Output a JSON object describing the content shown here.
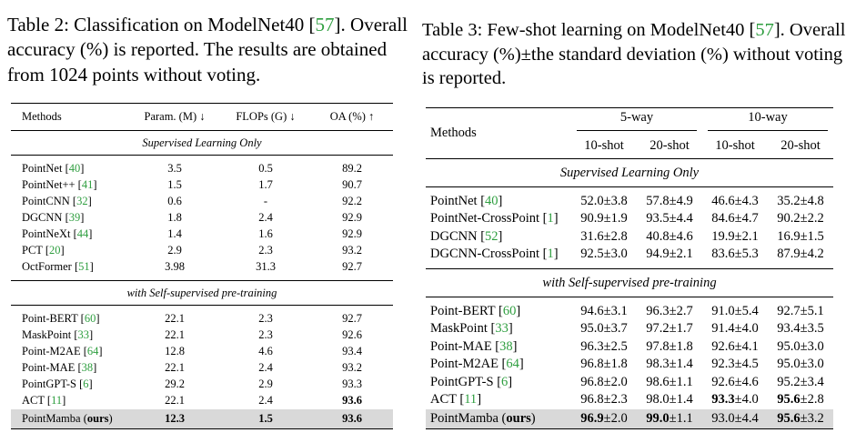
{
  "table2": {
    "caption_prefix": "Table 2:  Classification on ModelNet40 [",
    "caption_cite": "57",
    "caption_suffix": "]. Overall accuracy (%) is reported.  The results are obtained from 1024 points without voting.",
    "headers": [
      "Methods",
      "Param. (M) ↓",
      "FLOPs (G) ↓",
      "OA (%) ↑"
    ],
    "section1": "Supervised Learning Only",
    "section2": "with Self-supervised pre-training",
    "rows1": [
      {
        "name": "PointNet",
        "cite": "40",
        "param": "3.5",
        "flops": "0.5",
        "oa": "89.2"
      },
      {
        "name": "PointNet++",
        "cite": "41",
        "param": "1.5",
        "flops": "1.7",
        "oa": "90.7"
      },
      {
        "name": "PointCNN",
        "cite": "32",
        "param": "0.6",
        "flops": "-",
        "oa": "92.2"
      },
      {
        "name": "DGCNN",
        "cite": "39",
        "param": "1.8",
        "flops": "2.4",
        "oa": "92.9"
      },
      {
        "name": "PointNeXt",
        "cite": "44",
        "param": "1.4",
        "flops": "1.6",
        "oa": "92.9"
      },
      {
        "name": "PCT",
        "cite": "20",
        "param": "2.9",
        "flops": "2.3",
        "oa": "93.2"
      },
      {
        "name": "OctFormer",
        "cite": "51",
        "param": "3.98",
        "flops": "31.3",
        "oa": "92.7"
      }
    ],
    "rows2": [
      {
        "name": "Point-BERT",
        "cite": "60",
        "param": "22.1",
        "flops": "2.3",
        "oa": "92.7"
      },
      {
        "name": "MaskPoint",
        "cite": "33",
        "param": "22.1",
        "flops": "2.3",
        "oa": "92.6"
      },
      {
        "name": "Point-M2AE",
        "cite": "64",
        "param": "12.8",
        "flops": "4.6",
        "oa": "93.4"
      },
      {
        "name": "Point-MAE",
        "cite": "38",
        "param": "22.1",
        "flops": "2.4",
        "oa": "93.2"
      },
      {
        "name": "PointGPT-S",
        "cite": "6",
        "param": "29.2",
        "flops": "2.9",
        "oa": "93.3"
      },
      {
        "name": "ACT",
        "cite": "11",
        "param": "22.1",
        "flops": "2.4",
        "oa": "93.6"
      }
    ],
    "ours": {
      "name": "PointMamba",
      "tag": "ours",
      "param": "12.3",
      "flops": "1.5",
      "oa": "93.6"
    }
  },
  "table3": {
    "caption_prefix": "Table 3: Few-shot learning on ModelNet40 [",
    "caption_cite": "57",
    "caption_suffix": "]. Overall accuracy (%)±the standard deviation (%) without voting is reported.",
    "methods_header": "Methods",
    "way5": "5-way",
    "way10": "10-way",
    "shot10": "10-shot",
    "shot20": "20-shot",
    "section1": "Supervised Learning Only",
    "section2": "with Self-supervised pre-training",
    "rows1": [
      {
        "name": "PointNet",
        "cite": "40",
        "v": [
          "52.0±3.8",
          "57.8±4.9",
          "46.6±4.3",
          "35.2±4.8"
        ]
      },
      {
        "name": "PointNet-CrossPoint",
        "cite": "1",
        "v": [
          "90.9±1.9",
          "93.5±4.4",
          "84.6±4.7",
          "90.2±2.2"
        ]
      },
      {
        "name": "DGCNN",
        "cite": "52",
        "v": [
          "31.6±2.8",
          "40.8±4.6",
          "19.9±2.1",
          "16.9±1.5"
        ]
      },
      {
        "name": "DGCNN-CrossPoint",
        "cite": "1",
        "v": [
          "92.5±3.0",
          "94.9±2.1",
          "83.6±5.3",
          "87.9±4.2"
        ]
      }
    ],
    "rows2": [
      {
        "name": "Point-BERT",
        "cite": "60",
        "v": [
          "94.6±3.1",
          "96.3±2.7",
          "91.0±5.4",
          "92.7±5.1"
        ]
      },
      {
        "name": "MaskPoint",
        "cite": "33",
        "v": [
          "95.0±3.7",
          "97.2±1.7",
          "91.4±4.0",
          "93.4±3.5"
        ]
      },
      {
        "name": "Point-MAE",
        "cite": "38",
        "v": [
          "96.3±2.5",
          "97.8±1.8",
          "92.6±4.1",
          "95.0±3.0"
        ]
      },
      {
        "name": "Point-M2AE",
        "cite": "64",
        "v": [
          "96.8±1.8",
          "98.3±1.4",
          "92.3±4.5",
          "95.0±3.0"
        ]
      },
      {
        "name": "PointGPT-S",
        "cite": "6",
        "v": [
          "96.8±2.0",
          "98.6±1.1",
          "92.6±4.6",
          "95.2±3.4"
        ]
      },
      {
        "name": "ACT",
        "cite": "11",
        "v": [
          "96.8±2.3",
          "98.0±1.4",
          "93.3",
          "±4.0",
          "95.6",
          "±2.8"
        ]
      }
    ],
    "ours": {
      "name": "PointMamba",
      "tag": "ours",
      "b1": "96.9",
      "s1": "±2.0",
      "b2": "99.0",
      "s2": "±1.1",
      "v3": "93.0±4.4",
      "b4": "95.6",
      "s4": "±3.2"
    }
  }
}
